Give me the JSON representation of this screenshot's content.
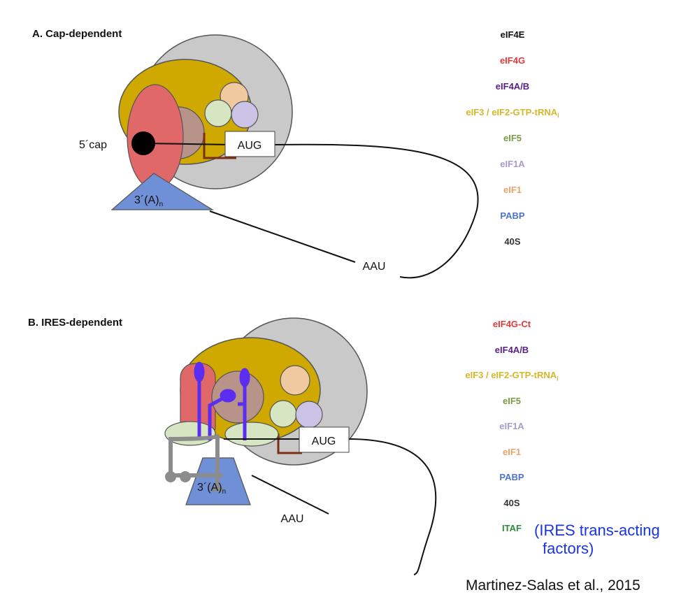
{
  "panel_a": {
    "title": "A. Cap-dependent",
    "labels": {
      "cap": "5´cap",
      "aug": "AUG",
      "poly_a": "3´(A)",
      "poly_a_sub": "n",
      "aau": "AAU"
    },
    "legend": [
      {
        "text": "eIF4E",
        "color": "#111111"
      },
      {
        "text": "eIF4G",
        "color": "#e03a3a"
      },
      {
        "text": "eIF4A/B",
        "color": "#5a1f86"
      },
      {
        "text": "eIF3 / eIF2-GTP-tRNA",
        "sub": "i",
        "color": "#d6b62a"
      },
      {
        "text": "eIF5",
        "color": "#7b9a45"
      },
      {
        "text": "eIF1A",
        "color": "#a899d0"
      },
      {
        "text": "eIF1",
        "color": "#e8a46a"
      },
      {
        "text": "PABP",
        "color": "#4f73c7"
      },
      {
        "text": "40S",
        "color": "#333333"
      }
    ]
  },
  "panel_b": {
    "title": "B. IRES-dependent",
    "labels": {
      "aug": "AUG",
      "poly_a": "3´(A)",
      "poly_a_sub": "n",
      "aau": "AAU"
    },
    "legend": [
      {
        "text": "eIF4G-Ct",
        "color": "#e03a3a"
      },
      {
        "text": "eIF4A/B",
        "color": "#5a1f86"
      },
      {
        "text": "eIF3 / eIF2-GTP-tRNA",
        "sub": "i",
        "color": "#d6b62a"
      },
      {
        "text": "eIF5",
        "color": "#7b9a45"
      },
      {
        "text": "eIF1A",
        "color": "#a899d0"
      },
      {
        "text": "eIF1",
        "color": "#e8a46a"
      },
      {
        "text": "PABP",
        "color": "#4f73c7"
      },
      {
        "text": "40S",
        "color": "#333333"
      },
      {
        "text": "ITAF",
        "color": "#2e8b3a"
      }
    ],
    "itaf_note_line1": "(IRES trans-acting",
    "itaf_note_line2": "factors)"
  },
  "citation": "Martinez-Salas et al., 2015",
  "colors": {
    "s40": "#c9c9c9",
    "eif3": "#cfa800",
    "eif4g": "#e06868",
    "eif4ab": "#b8938a",
    "eif5": "#d6e6c2",
    "eif1a": "#cbc3e6",
    "eif1": "#f0c9a0",
    "pabp": "#6f8fd6",
    "ires": "#5a2df0",
    "itaf": "#8c8c8c",
    "eif4e": "#000000",
    "start_mark": "#7a2e14"
  }
}
